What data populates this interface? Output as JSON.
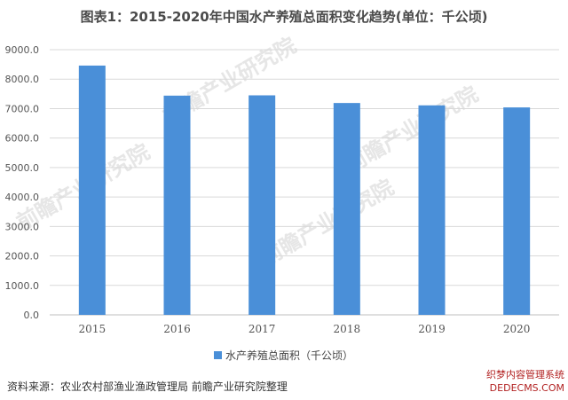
{
  "page": {
    "title": "图表1：2015-2020年中国水产养殖总面积变化趋势(单位：千公顷)",
    "source": "资料来源：农业农村部渔业渔政管理局 前瞻产业研究院整理",
    "watermark_text": "前瞻产业研究院",
    "corner_mark_line1": "织梦内容管理系统",
    "corner_mark_line2": "DEDECMS.COM"
  },
  "colors": {
    "bar": "#4a8fd8",
    "grid": "#d9d9d9",
    "axis": "#bfbfbf",
    "title_text": "#4a4a4a"
  },
  "chart_data": {
    "type": "bar",
    "title": "图表1：2015-2020年中国水产养殖总面积变化趋势(单位：千公顷)",
    "xlabel": "",
    "ylabel": "",
    "categories": [
      "2015",
      "2016",
      "2017",
      "2018",
      "2019",
      "2020"
    ],
    "series": [
      {
        "name": "水产养殖总面积（千公顷）",
        "values": [
          8460,
          7440,
          7450,
          7190,
          7110,
          7040
        ]
      }
    ],
    "ylim": [
      0,
      9000
    ],
    "yticks": [
      0,
      1000,
      2000,
      3000,
      4000,
      5000,
      6000,
      7000,
      8000,
      9000
    ],
    "ytick_labels": [
      "0.0",
      "1000.0",
      "2000.0",
      "3000.0",
      "4000.0",
      "5000.0",
      "6000.0",
      "7000.0",
      "8000.0",
      "9000.0"
    ],
    "grid": true,
    "legend_position": "bottom"
  }
}
